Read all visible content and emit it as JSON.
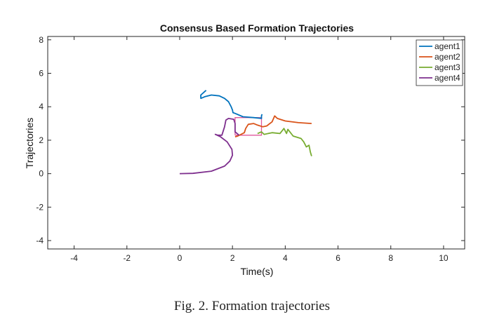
{
  "chart_data": {
    "type": "line",
    "title": "Consensus Based Formation Trajectories",
    "xlabel": "Time(s)",
    "ylabel": "Trajectories",
    "xlim": [
      -5,
      10.8
    ],
    "ylim": [
      -4.5,
      8.2
    ],
    "xticks": [
      -4,
      -2,
      0,
      2,
      4,
      6,
      8,
      10
    ],
    "yticks": [
      -4,
      -2,
      0,
      2,
      4,
      6,
      8
    ],
    "grid": false,
    "legend_position": "top-right",
    "series": [
      {
        "name": "agent1",
        "color": "#0072BD",
        "x": [
          1.0,
          0.8,
          0.8,
          0.95,
          1.2,
          1.5,
          1.7,
          1.85,
          1.95,
          2.0,
          2.02,
          2.1,
          2.4,
          2.8,
          3.1,
          3.1,
          3.12
        ],
        "y": [
          4.98,
          4.7,
          4.5,
          4.6,
          4.7,
          4.65,
          4.5,
          4.3,
          4.0,
          3.8,
          3.65,
          3.6,
          3.4,
          3.35,
          3.3,
          3.45,
          3.55
        ]
      },
      {
        "name": "agent2",
        "color": "#D95319",
        "x": [
          5.0,
          4.5,
          4.0,
          3.7,
          3.6,
          3.5,
          3.3,
          3.15,
          2.95,
          2.8,
          2.6,
          2.5,
          2.45,
          2.2,
          2.1
        ],
        "y": [
          3.0,
          3.05,
          3.15,
          3.3,
          3.45,
          3.1,
          2.85,
          2.8,
          2.9,
          3.0,
          2.95,
          2.7,
          2.45,
          2.25,
          2.2
        ]
      },
      {
        "name": "agent3",
        "color": "#77AC30",
        "x": [
          5.0,
          4.95,
          4.9,
          4.8,
          4.7,
          4.6,
          4.3,
          4.1,
          4.05,
          3.95,
          3.8,
          3.5,
          3.2,
          3.1,
          2.95
        ],
        "y": [
          1.05,
          1.3,
          1.7,
          1.6,
          1.9,
          2.1,
          2.25,
          2.65,
          2.4,
          2.7,
          2.4,
          2.45,
          2.35,
          2.5,
          2.4
        ]
      },
      {
        "name": "agent4",
        "color": "#7E2F8E",
        "x": [
          0.0,
          0.5,
          1.2,
          1.7,
          1.9,
          2.0,
          1.98,
          1.8,
          1.55,
          1.35,
          1.45,
          1.6,
          1.7,
          1.75,
          1.85,
          2.05,
          2.1,
          2.1,
          2.25
        ],
        "y": [
          0.0,
          0.02,
          0.15,
          0.45,
          0.75,
          1.1,
          1.45,
          1.9,
          2.2,
          2.35,
          2.3,
          2.3,
          2.8,
          3.2,
          3.3,
          3.25,
          3.0,
          2.5,
          2.3
        ]
      }
    ],
    "formation_box": {
      "color": "#E0589C",
      "x": [
        2.1,
        3.1,
        3.1,
        2.1,
        2.1
      ],
      "y": [
        2.3,
        2.3,
        3.35,
        3.35,
        2.3
      ]
    }
  },
  "caption": {
    "text": "Fig. 2.   Formation trajectories"
  }
}
